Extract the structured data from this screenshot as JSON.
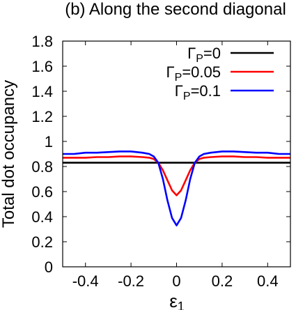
{
  "chart_data": {
    "type": "line",
    "title": "(b) Along the second diagonal",
    "xlabel": "ε",
    "xlabel_sub": "1",
    "ylabel": "Total dot occupancy",
    "xlim": [
      -0.5,
      0.5
    ],
    "ylim": [
      0,
      1.8
    ],
    "xticks": [
      "-0.4",
      "-0.2",
      "0",
      "0.2",
      "0.4"
    ],
    "xtick_values": [
      -0.4,
      -0.2,
      0,
      0.2,
      0.4
    ],
    "yticks": [
      "0",
      "0.2",
      "0.4",
      "0.6",
      "0.8",
      "1",
      "1.2",
      "1.4",
      "1.6",
      "1.8"
    ],
    "ytick_values": [
      0,
      0.2,
      0.4,
      0.6,
      0.8,
      1.0,
      1.2,
      1.4,
      1.6,
      1.8
    ],
    "grid": false,
    "legend_position": "top-right",
    "x": [
      -0.5,
      -0.45,
      -0.4,
      -0.35,
      -0.3,
      -0.25,
      -0.2,
      -0.15,
      -0.12,
      -0.1,
      -0.08,
      -0.06,
      -0.04,
      -0.02,
      0,
      0.02,
      0.04,
      0.06,
      0.08,
      0.1,
      0.12,
      0.15,
      0.2,
      0.25,
      0.3,
      0.35,
      0.4,
      0.45,
      0.5
    ],
    "series": [
      {
        "name_main": "Γ",
        "name_sub": "P",
        "name_rest": "=0",
        "color": "#000000",
        "values": [
          0.83,
          0.83,
          0.83,
          0.83,
          0.83,
          0.83,
          0.83,
          0.83,
          0.83,
          0.83,
          0.83,
          0.83,
          0.83,
          0.83,
          0.83,
          0.83,
          0.83,
          0.83,
          0.83,
          0.83,
          0.83,
          0.83,
          0.83,
          0.83,
          0.83,
          0.83,
          0.83,
          0.83,
          0.83
        ]
      },
      {
        "name_main": "Γ",
        "name_sub": "P",
        "name_rest": "=0.05",
        "color": "#ff0000",
        "values": [
          0.87,
          0.87,
          0.87,
          0.875,
          0.875,
          0.88,
          0.88,
          0.875,
          0.87,
          0.86,
          0.83,
          0.77,
          0.69,
          0.61,
          0.57,
          0.61,
          0.69,
          0.77,
          0.83,
          0.86,
          0.87,
          0.875,
          0.88,
          0.88,
          0.875,
          0.875,
          0.87,
          0.87,
          0.87
        ]
      },
      {
        "name_main": "Γ",
        "name_sub": "P",
        "name_rest": "=0.1",
        "color": "#0000ff",
        "values": [
          0.9,
          0.9,
          0.91,
          0.91,
          0.915,
          0.92,
          0.92,
          0.91,
          0.9,
          0.88,
          0.83,
          0.7,
          0.53,
          0.39,
          0.33,
          0.39,
          0.53,
          0.7,
          0.83,
          0.88,
          0.9,
          0.91,
          0.92,
          0.92,
          0.915,
          0.91,
          0.91,
          0.9,
          0.9
        ]
      }
    ]
  }
}
